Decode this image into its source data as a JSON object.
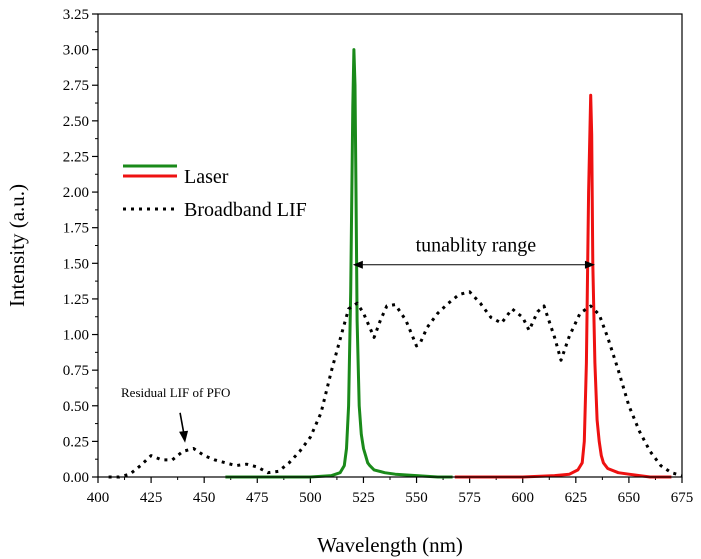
{
  "chart_data": {
    "type": "line",
    "title": "",
    "xlabel": "Wavelength (nm)",
    "ylabel": "Intensity (a.u.)",
    "xlim": [
      400,
      675
    ],
    "ylim": [
      0,
      3.25
    ],
    "xticks": [
      "400",
      "425",
      "450",
      "475",
      "500",
      "525",
      "550",
      "575",
      "600",
      "625",
      "650",
      "675"
    ],
    "yticks": [
      "0.00",
      "0.25",
      "0.50",
      "0.75",
      "1.00",
      "1.25",
      "1.50",
      "1.75",
      "2.00",
      "2.25",
      "2.50",
      "2.75",
      "3.00",
      "3.25"
    ],
    "grid": false,
    "legend": {
      "placement": "left",
      "entries": [
        {
          "label": "",
          "color": "#1a8a1a",
          "style": "solid"
        },
        {
          "label": "Laser",
          "color": "#ee1111",
          "style": "solid"
        },
        {
          "label": "Broadband LIF",
          "color": "#000000",
          "style": "dotted"
        }
      ]
    },
    "annotations": {
      "range_label": "tunablity range",
      "range_from": 520,
      "range_to": 634,
      "range_y": 1.49,
      "pfo_label": "Residual LIF of PFO",
      "pfo_arrow_x": 441,
      "pfo_arrow_y": 0.24
    },
    "series": [
      {
        "color": "#1a8a1a",
        "style": "solid",
        "x": [
          460,
          480,
          500,
          510,
          514,
          516,
          517,
          518,
          519,
          520,
          520.5,
          521,
          521.5,
          522,
          523,
          524,
          525,
          526,
          527,
          528,
          530,
          535,
          540,
          550,
          560,
          567
        ],
        "y": [
          0.0,
          0.0,
          0.0,
          0.01,
          0.03,
          0.08,
          0.2,
          0.5,
          1.3,
          2.6,
          3.0,
          2.75,
          2.0,
          1.1,
          0.5,
          0.3,
          0.2,
          0.15,
          0.1,
          0.08,
          0.05,
          0.03,
          0.02,
          0.01,
          0.0,
          0.0
        ]
      },
      {
        "name": "Laser",
        "color": "#ee1111",
        "style": "solid",
        "x": [
          568,
          580,
          600,
          615,
          622,
          626,
          628,
          629,
          630,
          631,
          632,
          632.5,
          633,
          634,
          635,
          636,
          637,
          638,
          640,
          645,
          650,
          655,
          660,
          670
        ],
        "y": [
          0.0,
          0.0,
          0.0,
          0.01,
          0.02,
          0.05,
          0.1,
          0.25,
          0.8,
          2.0,
          2.68,
          2.4,
          1.5,
          0.8,
          0.4,
          0.25,
          0.15,
          0.1,
          0.06,
          0.03,
          0.02,
          0.01,
          0.0,
          0.0
        ]
      },
      {
        "name": "Broadband LIF",
        "color": "#000000",
        "style": "dotted",
        "x": [
          405,
          410,
          415,
          420,
          425,
          430,
          435,
          440,
          445,
          450,
          455,
          460,
          465,
          470,
          475,
          480,
          485,
          490,
          495,
          500,
          505,
          510,
          515,
          518,
          522,
          525,
          530,
          533,
          536,
          540,
          545,
          550,
          552,
          555,
          560,
          565,
          570,
          575,
          580,
          585,
          590,
          595,
          600,
          603,
          607,
          610,
          615,
          618,
          622,
          627,
          632,
          636,
          640,
          645,
          650,
          655,
          660,
          665,
          670,
          675
        ],
        "y": [
          0.0,
          0.0,
          0.02,
          0.08,
          0.15,
          0.12,
          0.12,
          0.18,
          0.2,
          0.15,
          0.12,
          0.1,
          0.08,
          0.09,
          0.07,
          0.03,
          0.04,
          0.1,
          0.18,
          0.28,
          0.45,
          0.75,
          1.02,
          1.18,
          1.22,
          1.15,
          0.98,
          1.1,
          1.2,
          1.21,
          1.1,
          0.92,
          0.95,
          1.05,
          1.15,
          1.22,
          1.28,
          1.3,
          1.22,
          1.12,
          1.08,
          1.18,
          1.12,
          1.03,
          1.16,
          1.2,
          0.98,
          0.82,
          0.99,
          1.15,
          1.2,
          1.14,
          0.98,
          0.75,
          0.5,
          0.32,
          0.18,
          0.08,
          0.03,
          0.01
        ]
      }
    ]
  }
}
